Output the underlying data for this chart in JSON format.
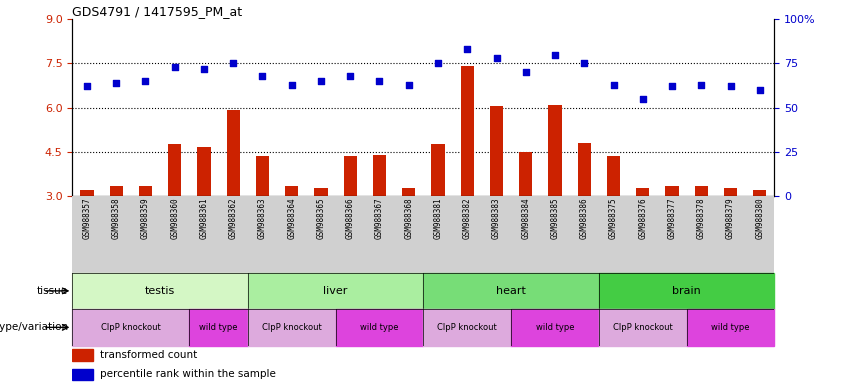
{
  "title": "GDS4791 / 1417595_PM_at",
  "samples": [
    "GSM988357",
    "GSM988358",
    "GSM988359",
    "GSM988360",
    "GSM988361",
    "GSM988362",
    "GSM988363",
    "GSM988364",
    "GSM988365",
    "GSM988366",
    "GSM988367",
    "GSM988368",
    "GSM988381",
    "GSM988382",
    "GSM988383",
    "GSM988384",
    "GSM988385",
    "GSM988386",
    "GSM988375",
    "GSM988376",
    "GSM988377",
    "GSM988378",
    "GSM988379",
    "GSM988380"
  ],
  "bar_values": [
    3.2,
    3.35,
    3.35,
    4.75,
    4.65,
    5.9,
    4.35,
    3.35,
    3.25,
    4.35,
    4.4,
    3.25,
    4.75,
    7.4,
    6.05,
    4.5,
    6.1,
    4.8,
    4.35,
    3.25,
    3.35,
    3.35,
    3.25,
    3.2
  ],
  "blue_values": [
    62,
    64,
    65,
    73,
    72,
    75,
    68,
    63,
    65,
    68,
    65,
    63,
    75,
    83,
    78,
    70,
    80,
    75,
    63,
    55,
    62,
    63,
    62,
    60
  ],
  "tissues": [
    {
      "label": "testis",
      "start": 0,
      "end": 6,
      "color": "#d4f7c5"
    },
    {
      "label": "liver",
      "start": 6,
      "end": 12,
      "color": "#aaeea0"
    },
    {
      "label": "heart",
      "start": 12,
      "end": 18,
      "color": "#77dd77"
    },
    {
      "label": "brain",
      "start": 18,
      "end": 24,
      "color": "#44cc44"
    }
  ],
  "genotypes": [
    {
      "label": "ClpP knockout",
      "start": 0,
      "end": 4,
      "color": "#ddaadd"
    },
    {
      "label": "wild type",
      "start": 4,
      "end": 6,
      "color": "#dd44dd"
    },
    {
      "label": "ClpP knockout",
      "start": 6,
      "end": 9,
      "color": "#ddaadd"
    },
    {
      "label": "wild type",
      "start": 9,
      "end": 12,
      "color": "#dd44dd"
    },
    {
      "label": "ClpP knockout",
      "start": 12,
      "end": 15,
      "color": "#ddaadd"
    },
    {
      "label": "wild type",
      "start": 15,
      "end": 18,
      "color": "#dd44dd"
    },
    {
      "label": "ClpP knockout",
      "start": 18,
      "end": 21,
      "color": "#ddaadd"
    },
    {
      "label": "wild type",
      "start": 21,
      "end": 24,
      "color": "#dd44dd"
    }
  ],
  "ylim_left": [
    3,
    9
  ],
  "ylim_right": [
    0,
    100
  ],
  "yticks_left": [
    3,
    4.5,
    6,
    7.5,
    9
  ],
  "yticks_right": [
    0,
    25,
    50,
    75,
    100
  ],
  "bar_color": "#cc2200",
  "blue_color": "#0000cc",
  "hline_values": [
    4.5,
    6.0,
    7.5
  ],
  "bg_color": "#ffffff",
  "label_bg_color": "#d0d0d0"
}
